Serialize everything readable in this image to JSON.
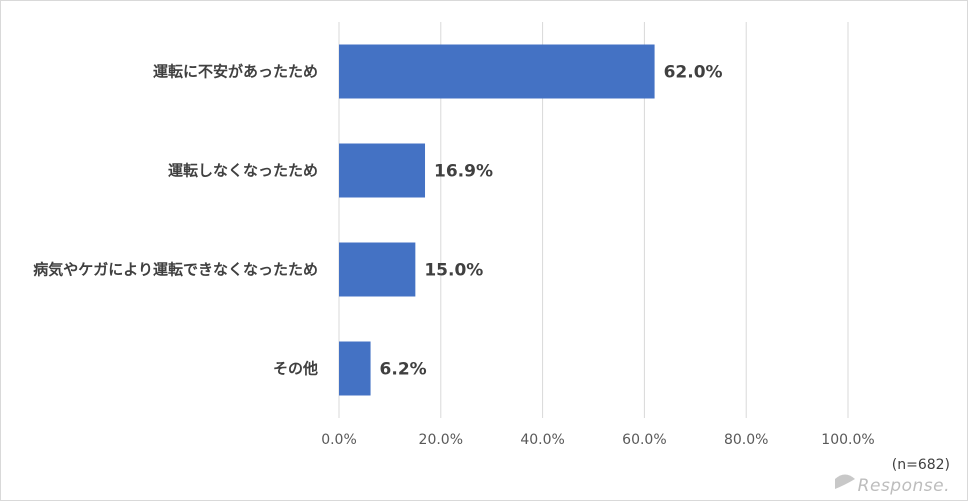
{
  "chart_data": {
    "type": "bar",
    "orientation": "horizontal",
    "categories": [
      "運転に不安があったため",
      "運転しなくなったため",
      "病気やケガにより運転できなくなったため",
      "その他"
    ],
    "values": [
      62.0,
      16.9,
      15.0,
      6.2
    ],
    "value_labels": [
      "62.0%",
      "16.9%",
      "15.0%",
      "6.2%"
    ],
    "xlim": [
      0,
      100
    ],
    "x_ticks": [
      0,
      20,
      40,
      60,
      80,
      100
    ],
    "x_tick_labels": [
      "0.0%",
      "20.0%",
      "40.0%",
      "60.0%",
      "80.0%",
      "100.0%"
    ],
    "grid": true,
    "bar_color": "#4472c4",
    "grid_color": "#d9d9d9"
  },
  "note": "(n=682)",
  "watermark": "Response."
}
